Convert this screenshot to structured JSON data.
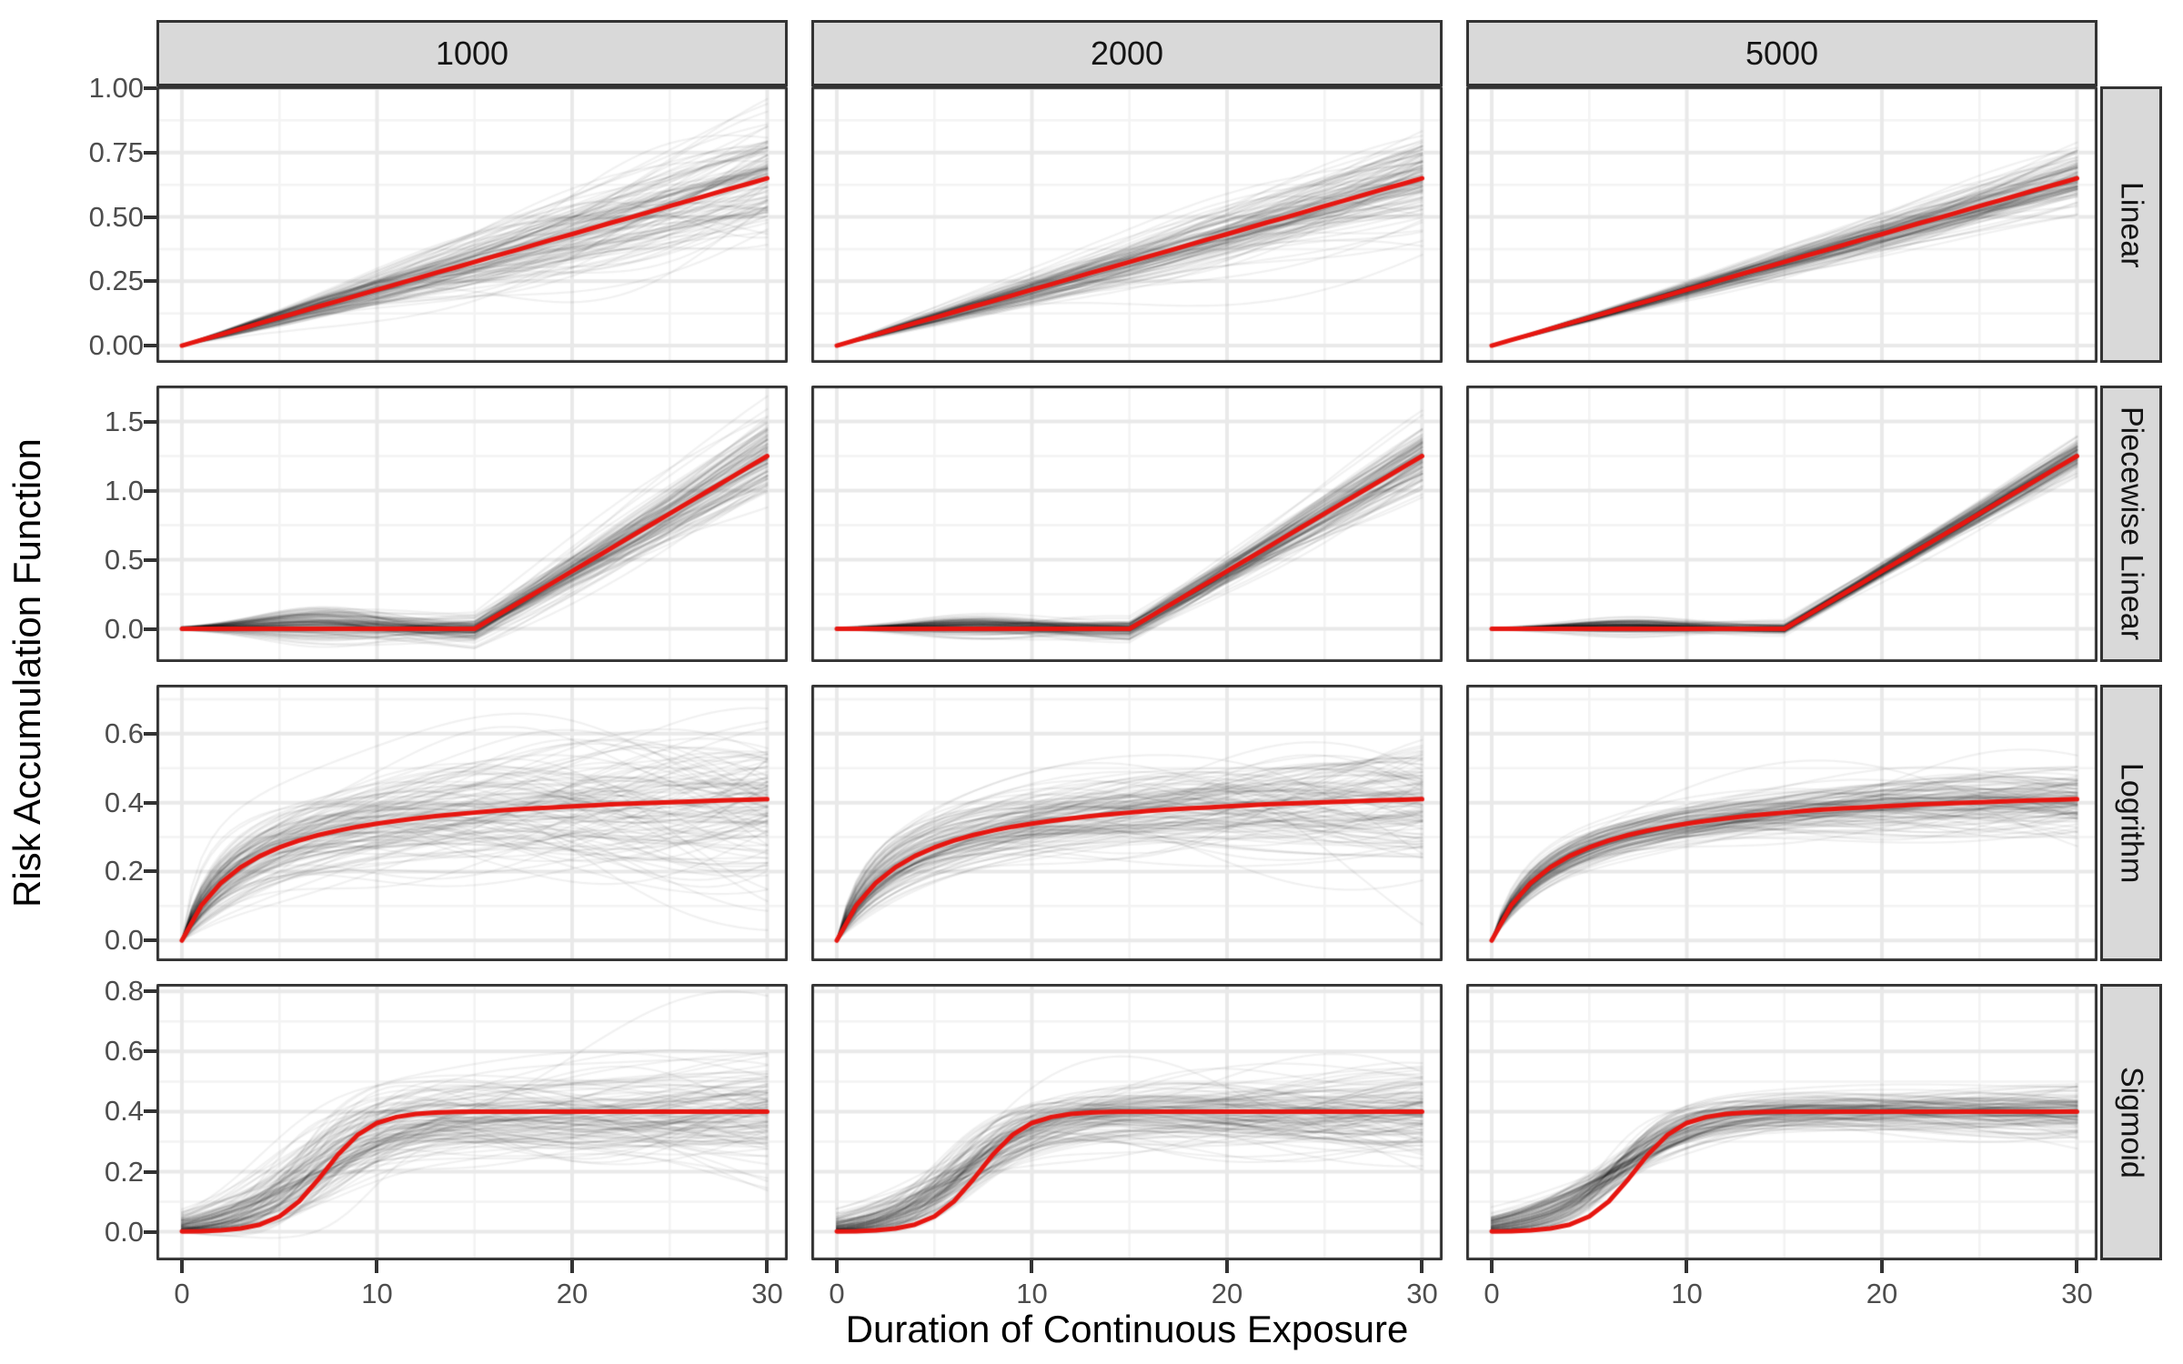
{
  "chart_data": {
    "type": "line",
    "title": "",
    "xlabel": "Duration of Continuous Exposure",
    "ylabel": "Risk Accumulation Function",
    "facet_cols": [
      "1000",
      "2000",
      "5000"
    ],
    "facet_rows": [
      "Linear",
      "Piecewise Linear",
      "Logrithm",
      "Sigmoid"
    ],
    "legend": "none",
    "grid": "on",
    "x": [
      0,
      1,
      2,
      3,
      4,
      5,
      6,
      7,
      8,
      9,
      10,
      11,
      12,
      13,
      14,
      15,
      16,
      17,
      18,
      19,
      20,
      21,
      22,
      23,
      24,
      25,
      26,
      27,
      28,
      29,
      30
    ],
    "xlim": [
      -1.305,
      31.05
    ],
    "x_ticks": [
      0,
      10,
      20,
      30
    ],
    "x_minor_ticks": [
      5,
      15,
      25
    ],
    "rows": [
      {
        "label": "Linear",
        "ylim": [
          -0.067,
          1.007
        ],
        "tick_values": [
          0,
          0.25,
          0.5,
          0.75,
          1.0
        ],
        "tick_labels": [
          "0.00",
          "0.25",
          "0.50",
          "0.75",
          "1.00"
        ],
        "red": [
          0,
          0.022,
          0.043,
          0.065,
          0.087,
          0.108,
          0.13,
          0.152,
          0.173,
          0.195,
          0.217,
          0.238,
          0.26,
          0.282,
          0.303,
          0.325,
          0.347,
          0.368,
          0.39,
          0.412,
          0.433,
          0.455,
          0.477,
          0.498,
          0.52,
          0.542,
          0.563,
          0.585,
          0.607,
          0.628,
          0.65
        ]
      },
      {
        "label": "Piecewise Linear",
        "ylim": [
          -0.24,
          1.76
        ],
        "tick_values": [
          0,
          0.5,
          1.0,
          1.5
        ],
        "tick_labels": [
          "0.0",
          "0.5",
          "1.0",
          "1.5"
        ],
        "red": [
          0,
          0,
          0,
          0,
          0,
          0,
          0,
          0,
          0,
          0,
          0,
          0,
          0,
          0,
          0,
          0,
          0.083,
          0.167,
          0.25,
          0.333,
          0.417,
          0.5,
          0.583,
          0.667,
          0.75,
          0.833,
          0.917,
          1.0,
          1.083,
          1.167,
          1.25
        ]
      },
      {
        "label": "Logrithm",
        "ylim": [
          -0.06,
          0.742
        ],
        "tick_values": [
          0,
          0.2,
          0.4,
          0.6
        ],
        "tick_labels": [
          "0.0",
          "0.2",
          "0.4",
          "0.6"
        ],
        "red": [
          0,
          0.102,
          0.167,
          0.212,
          0.245,
          0.27,
          0.29,
          0.306,
          0.319,
          0.33,
          0.339,
          0.347,
          0.354,
          0.361,
          0.366,
          0.371,
          0.376,
          0.38,
          0.383,
          0.386,
          0.389,
          0.392,
          0.395,
          0.397,
          0.399,
          0.401,
          0.403,
          0.405,
          0.407,
          0.408,
          0.41
        ]
      },
      {
        "label": "Sigmoid",
        "ylim": [
          -0.095,
          0.825
        ],
        "tick_values": [
          0,
          0.2,
          0.4,
          0.6,
          0.8
        ],
        "tick_labels": [
          "0.0",
          "0.2",
          "0.4",
          "0.6",
          "0.8"
        ],
        "red": [
          0.001,
          0.002,
          0.005,
          0.011,
          0.024,
          0.051,
          0.101,
          0.175,
          0.257,
          0.322,
          0.362,
          0.382,
          0.392,
          0.397,
          0.399,
          0.4,
          0.4,
          0.4,
          0.4,
          0.4,
          0.4,
          0.4,
          0.4,
          0.4,
          0.4,
          0.4,
          0.4,
          0.4,
          0.4,
          0.4,
          0.4
        ]
      }
    ],
    "ensemble": {
      "n_curves": 120,
      "alpha": 0.055,
      "line_width": 2.2,
      "line_color": "#000000",
      "col_spread": [
        1.0,
        0.78,
        0.45
      ],
      "seed": 42,
      "rows": [
        {
          "type": "scale",
          "f_sd": 0.12,
          "wiggle": 0.1,
          "env_pow": 1.2
        },
        {
          "type": "piecewise",
          "f_sd": 0.1,
          "wiggle": 0.09,
          "env_pow": 0.9,
          "hump_mean": 0.035,
          "hump_sd": 0.055,
          "hump_center": 7,
          "hump_width": 4.5
        },
        {
          "type": "log",
          "A": 0.457,
          "b": 3.47,
          "A_sd": 0.1,
          "b_logsd": 0.45,
          "wiggle": 0.13,
          "env_pow": 0.8
        },
        {
          "type": "sigmoid",
          "L": 0.4,
          "L_sd": 0.11,
          "m_mean": 6.4,
          "m_sd": 1.1,
          "s_mean": 2.1,
          "s_sd": 0.7,
          "s_min": 1.3,
          "wiggle": 0.1,
          "env_pow": 0.8
        }
      ]
    },
    "colors": {
      "red_curve": "#e61610",
      "gray_curve": "#000000",
      "grid_major": "#e9e9e9",
      "grid_minor": "#f3f3f3",
      "panel_border": "#333333",
      "strip_bg": "#d9d9d9",
      "strip_border": "#333333",
      "tick_label": "#4d4d4d",
      "axis_title": "#000000",
      "background": "#ffffff"
    }
  }
}
